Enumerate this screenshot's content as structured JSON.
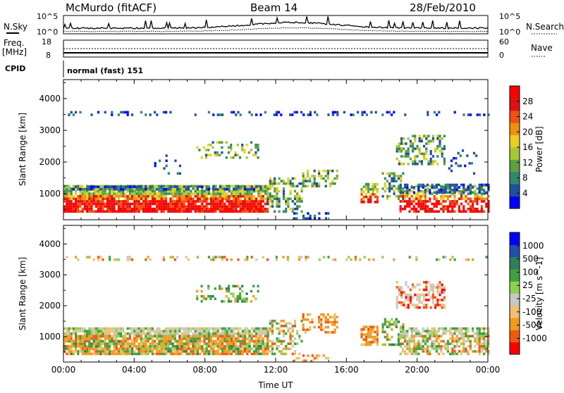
{
  "header": {
    "station": "McMurdo (fitACF)",
    "beam": "Beam 14",
    "date": "28/Feb/2010"
  },
  "nsky_panel": {
    "left_label": "N.Sky",
    "left_ticks": [
      "10^5",
      "10^0"
    ],
    "right_label": "N.Search",
    "right_ticks": [
      "10^5",
      "10^0"
    ]
  },
  "freq_panel": {
    "left_label_1": "Freq.",
    "left_label_2": "[MHz]",
    "left_ticks": [
      "18",
      "8"
    ],
    "right_label": "Nave",
    "right_ticks": [
      "60",
      "0"
    ]
  },
  "cpid_panel": {
    "label": "CPID",
    "mode": "normal (fast) 151"
  },
  "colors": {
    "power": [
      "#0000ff",
      "#1f4fa0",
      "#2f8a6a",
      "#5fa040",
      "#a8c832",
      "#e8d020",
      "#f09010",
      "#f05010",
      "#e01010",
      "#ff0000"
    ],
    "velocity": [
      "#ff0000",
      "#f05a10",
      "#f09a20",
      "#f0c070",
      "#c8c8c8",
      "#90d050",
      "#40a040",
      "#2f7f5a",
      "#2050a8",
      "#0000ff"
    ]
  },
  "chart_data": [
    {
      "type": "heatmap",
      "name": "power",
      "ylabel": "Slant Range [km]",
      "xlabel": "",
      "ylim": [
        180,
        4600
      ],
      "yticks": [
        "1000",
        "2000",
        "3000",
        "4000"
      ],
      "xlim_hours": [
        0,
        24
      ],
      "colorbar_label": "Power [dB]",
      "colorbar_ticks": [
        "4",
        "8",
        "12",
        "16",
        "20",
        "24",
        "28"
      ]
    },
    {
      "type": "heatmap",
      "name": "velocity",
      "ylabel": "Slant Range [km]",
      "xlabel": "Time UT",
      "ylim": [
        180,
        4600
      ],
      "yticks": [
        "1000",
        "2000",
        "3000",
        "4000"
      ],
      "xticks": [
        "00:00",
        "04:00",
        "08:00",
        "12:00",
        "16:00",
        "20:00",
        "00:00"
      ],
      "colorbar_label": "Velocity [m s^-1]",
      "colorbar_ticks": [
        "1000",
        "500",
        "100",
        "25",
        "-25",
        "-100",
        "-500",
        "-1000"
      ]
    }
  ]
}
